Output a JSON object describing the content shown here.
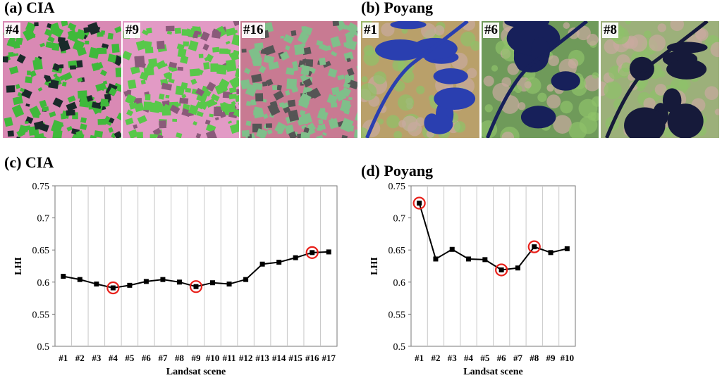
{
  "panels": {
    "a_title": "(a) CIA",
    "b_title": "(b) Poyang",
    "c_title": "(c) CIA",
    "d_title": "(d) Poyang"
  },
  "images": {
    "cia": [
      {
        "label": "#4",
        "style": "cropland",
        "bg": "#d989b4",
        "field_color": "#3fb93b",
        "dark": "#1a2a2a"
      },
      {
        "label": "#9",
        "style": "cropland",
        "bg": "#e29ac5",
        "field_color": "#58c84a",
        "dark": "#8a5a7a"
      },
      {
        "label": "#16",
        "style": "cropland",
        "bg": "#c87a92",
        "field_color": "#7fbf8a",
        "dark": "#555"
      }
    ],
    "poyang": [
      {
        "label": "#1",
        "style": "lake",
        "bg": "#b9a06a",
        "water": "#2a3fb0"
      },
      {
        "label": "#6",
        "style": "lake",
        "bg": "#6f9a5a",
        "water": "#17205a"
      },
      {
        "label": "#8",
        "style": "lake",
        "bg": "#9cb07a",
        "water": "#161a3a"
      }
    ]
  },
  "chart_data": [
    {
      "type": "line",
      "title": "(c) CIA",
      "xlabel": "Landsat scene",
      "ylabel": "LHI",
      "ylim": [
        0.5,
        0.75
      ],
      "yticks": [
        "0.5",
        "0.55",
        "0.6",
        "0.65",
        "0.7",
        "0.75"
      ],
      "grid": "vertical",
      "categories": [
        "#1",
        "#2",
        "#3",
        "#4",
        "#5",
        "#6",
        "#7",
        "#8",
        "#9",
        "#10",
        "#11",
        "#12",
        "#13",
        "#14",
        "#15",
        "#16",
        "#17"
      ],
      "values": [
        0.609,
        0.604,
        0.597,
        0.591,
        0.595,
        0.601,
        0.604,
        0.6,
        0.593,
        0.599,
        0.597,
        0.604,
        0.628,
        0.631,
        0.638,
        0.646,
        0.647
      ],
      "highlighted": [
        "#4",
        "#9",
        "#16"
      ],
      "line_color": "#000000",
      "highlight_color": "#e8201a"
    },
    {
      "type": "line",
      "title": "(d) Poyang",
      "xlabel": "Landsat scene",
      "ylabel": "LHI",
      "ylim": [
        0.5,
        0.75
      ],
      "yticks": [
        "0.5",
        "0.55",
        "0.6",
        "0.65",
        "0.7",
        "0.75"
      ],
      "grid": "vertical",
      "categories": [
        "#1",
        "#2",
        "#3",
        "#4",
        "#5",
        "#6",
        "#7",
        "#8",
        "#9",
        "#10"
      ],
      "values": [
        0.723,
        0.636,
        0.651,
        0.636,
        0.635,
        0.619,
        0.622,
        0.655,
        0.646,
        0.652
      ],
      "highlighted": [
        "#1",
        "#6",
        "#8"
      ],
      "line_color": "#000000",
      "highlight_color": "#e8201a"
    }
  ]
}
